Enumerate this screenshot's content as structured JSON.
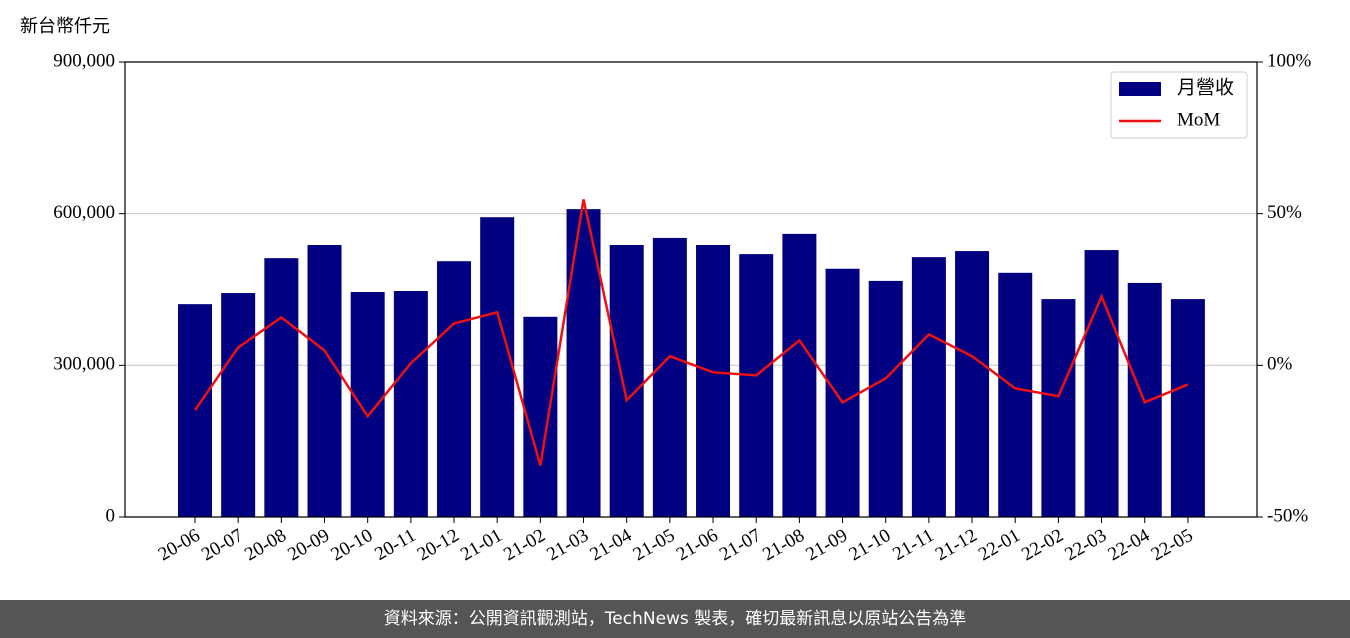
{
  "chart_data": {
    "type": "bar",
    "unit_label": "新台幣仟元",
    "categories": [
      "20-06",
      "20-07",
      "20-08",
      "20-09",
      "20-10",
      "20-11",
      "20-12",
      "21-01",
      "21-02",
      "21-03",
      "21-04",
      "21-05",
      "21-06",
      "21-07",
      "21-08",
      "21-09",
      "21-10",
      "21-11",
      "21-12",
      "22-01",
      "22-02",
      "22-03",
      "22-04",
      "22-05"
    ],
    "series": [
      {
        "name": "月營收",
        "type": "bar",
        "axis": "y",
        "color": "#000080",
        "values": [
          421000,
          443000,
          512000,
          538000,
          445000,
          447000,
          506000,
          593000,
          396000,
          609000,
          538000,
          552000,
          538000,
          520000,
          560000,
          491000,
          467000,
          514000,
          526000,
          483000,
          431000,
          528000,
          463000,
          431000
        ]
      },
      {
        "name": "MoM",
        "type": "line",
        "axis": "y2",
        "color": "#ee1111",
        "values": [
          -14.8,
          5.9,
          15.8,
          4.9,
          -16.8,
          0.7,
          13.8,
          17.5,
          -33,
          54.7,
          -11.5,
          3,
          -2.3,
          -3.3,
          8.2,
          -12.2,
          -4.3,
          10.2,
          3,
          -7.6,
          -10.2,
          22.7,
          -12.2,
          -6.3
        ]
      }
    ],
    "ylim": [
      0,
      900000
    ],
    "yticks": [
      0,
      {
        "value": 300000,
        "label": "300,000"
      },
      {
        "value": 600000,
        "label": "600,000"
      },
      {
        "value": 900000,
        "label": "900,000"
      }
    ],
    "y2lim": [
      -50,
      100
    ],
    "y2ticks": [
      {
        "value": -50,
        "label": "-50%"
      },
      {
        "value": 0,
        "label": "0%"
      },
      {
        "value": 50,
        "label": "50%"
      },
      {
        "value": 100,
        "label": "100%"
      }
    ],
    "grid": true,
    "legend": "upper right"
  },
  "footer": "資料來源：公開資訊觀測站，TechNews 製表，確切最新訊息以原站公告為準"
}
